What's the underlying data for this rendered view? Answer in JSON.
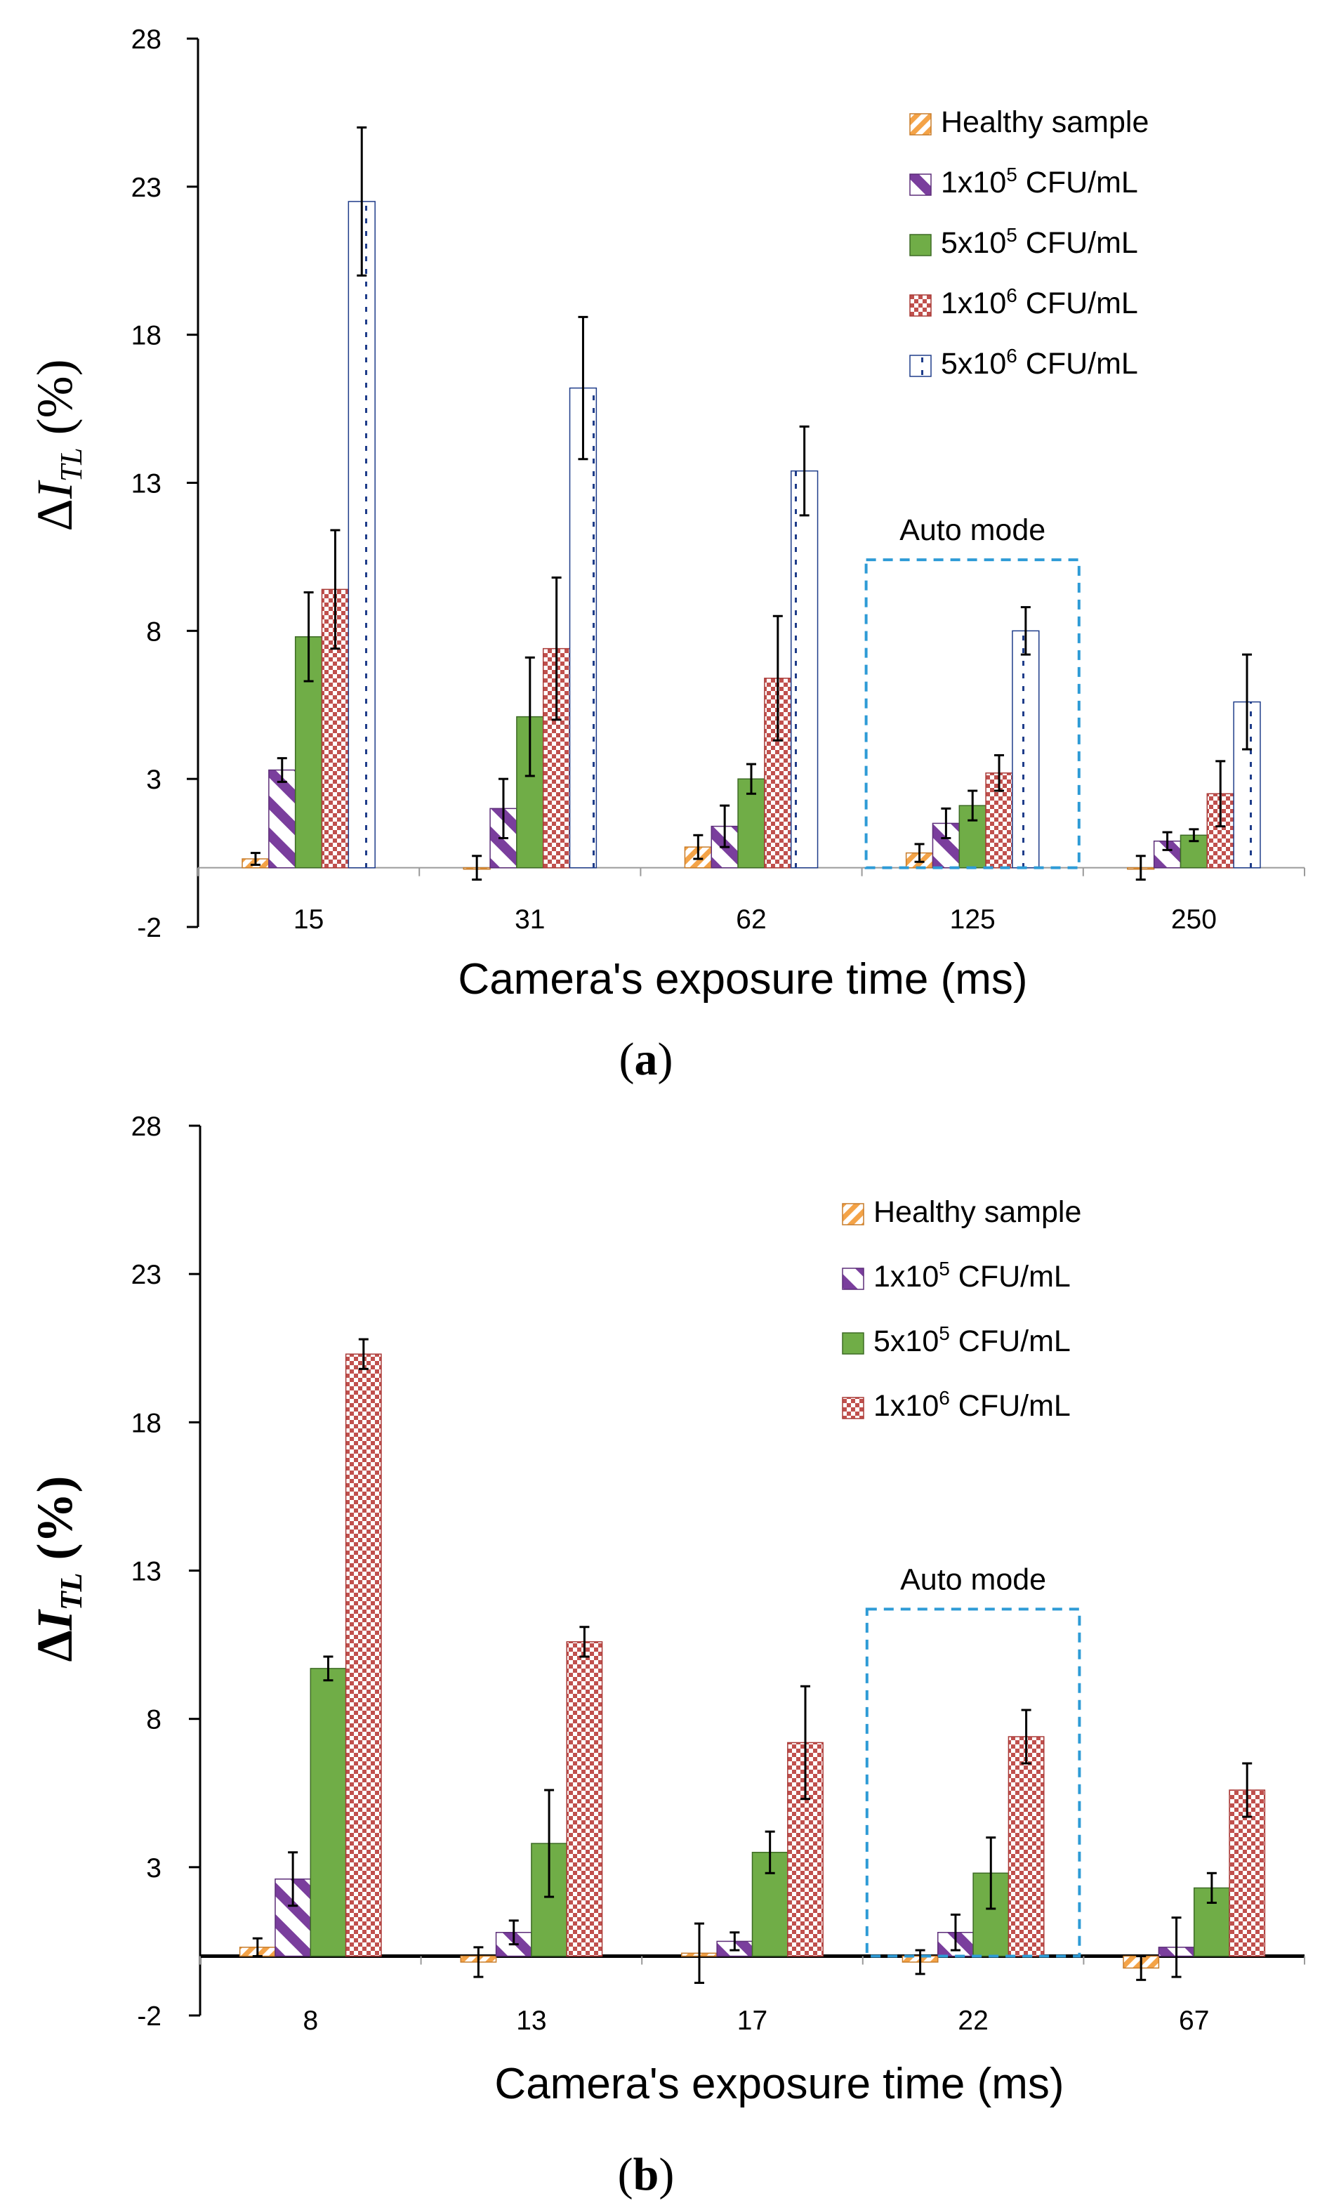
{
  "colors": {
    "healthy": "#f4a347",
    "c1e5": "#7a3e9d",
    "c5e5": "#70ad47",
    "c1e6": "#c0504d",
    "c5e6": "#1f3d8a",
    "auto_box": "#2e9bd6",
    "axis": "#000000"
  },
  "chart_data": [
    {
      "panel_label": "(a)",
      "panel_letter": "a",
      "type": "bar",
      "title": "",
      "xlabel": "Camera's exposure time (ms)",
      "ylabel_delta": "Δ",
      "ylabel_I": "I",
      "ylabel_sub": "TL",
      "ylabel_unit": "(%)",
      "ylim": [
        -2,
        28
      ],
      "yticks": [
        -2,
        3,
        8,
        13,
        18,
        23,
        28
      ],
      "categories": [
        "15",
        "31",
        "62",
        "125",
        "250"
      ],
      "legend_position": "top-right",
      "legend": [
        {
          "key": "healthy",
          "text": "Healthy sample"
        },
        {
          "key": "c1e5",
          "pre": "1x10",
          "sup": "5",
          "post": " CFU/mL"
        },
        {
          "key": "c5e5",
          "pre": "5x10",
          "sup": "5",
          "post": " CFU/mL"
        },
        {
          "key": "c1e6",
          "pre": "1x10",
          "sup": "6",
          "post": " CFU/mL"
        },
        {
          "key": "c5e6",
          "pre": "5x10",
          "sup": "6",
          "post": " CFU/mL"
        }
      ],
      "series": [
        {
          "name": "Healthy sample",
          "key": "healthy",
          "values": [
            0.3,
            0.0,
            0.7,
            0.5,
            0.0
          ],
          "errors": [
            0.2,
            0.4,
            0.4,
            0.3,
            0.4
          ]
        },
        {
          "name": "1x10^5 CFU/mL",
          "key": "c1e5",
          "values": [
            3.3,
            2.0,
            1.4,
            1.5,
            0.9
          ],
          "errors": [
            0.4,
            1.0,
            0.7,
            0.5,
            0.3
          ]
        },
        {
          "name": "5x10^5 CFU/mL",
          "key": "c5e5",
          "values": [
            7.8,
            5.1,
            3.0,
            2.1,
            1.1
          ],
          "errors": [
            1.5,
            2.0,
            0.5,
            0.5,
            0.2
          ]
        },
        {
          "name": "1x10^6 CFU/mL",
          "key": "c1e6",
          "values": [
            9.4,
            7.4,
            6.4,
            3.2,
            2.5
          ],
          "errors": [
            2.0,
            2.4,
            2.1,
            0.6,
            1.1
          ]
        },
        {
          "name": "5x10^6 CFU/mL",
          "key": "c5e6",
          "values": [
            22.5,
            16.2,
            13.4,
            8.0,
            5.6
          ],
          "errors": [
            2.5,
            2.4,
            1.5,
            0.8,
            1.6
          ]
        }
      ],
      "auto_mode": {
        "label": "Auto mode",
        "category": "125",
        "box_top": 10.4
      },
      "zero_line": "thin-gray"
    },
    {
      "panel_label": "(b)",
      "panel_letter": "b",
      "type": "bar",
      "title": "",
      "xlabel": "Camera's exposure time (ms)",
      "ylabel_delta": "Δ",
      "ylabel_I": "I",
      "ylabel_sub": "TL",
      "ylabel_unit": "(%)",
      "ylim": [
        -2,
        28
      ],
      "yticks": [
        -2,
        3,
        8,
        13,
        18,
        23,
        28
      ],
      "categories": [
        "8",
        "13",
        "17",
        "22",
        "67"
      ],
      "legend_position": "top-right",
      "legend": [
        {
          "key": "healthy",
          "text": "Healthy sample"
        },
        {
          "key": "c1e5",
          "pre": "1x10",
          "sup": "5",
          "post": " CFU/mL"
        },
        {
          "key": "c5e5",
          "pre": "5x10",
          "sup": "5",
          "post": " CFU/mL"
        },
        {
          "key": "c1e6",
          "pre": "1x10",
          "sup": "6",
          "post": " CFU/mL"
        }
      ],
      "series": [
        {
          "name": "Healthy sample",
          "key": "healthy",
          "values": [
            0.3,
            -0.2,
            0.1,
            -0.2,
            -0.4
          ],
          "errors": [
            0.3,
            0.5,
            1.0,
            0.4,
            0.4
          ]
        },
        {
          "name": "1x10^5 CFU/mL",
          "key": "c1e5",
          "values": [
            2.6,
            0.8,
            0.5,
            0.8,
            0.3
          ],
          "errors": [
            0.9,
            0.4,
            0.3,
            0.6,
            1.0
          ]
        },
        {
          "name": "5x10^5 CFU/mL",
          "key": "c5e5",
          "values": [
            9.7,
            3.8,
            3.5,
            2.8,
            2.3
          ],
          "errors": [
            0.4,
            1.8,
            0.7,
            1.2,
            0.5
          ]
        },
        {
          "name": "1x10^6 CFU/mL",
          "key": "c1e6",
          "values": [
            20.3,
            10.6,
            7.2,
            7.4,
            5.6
          ],
          "errors": [
            0.5,
            0.5,
            1.9,
            0.9,
            0.9
          ]
        }
      ],
      "auto_mode": {
        "label": "Auto mode",
        "category": "22",
        "box_top": 11.7
      },
      "zero_line": "thick-black"
    }
  ]
}
